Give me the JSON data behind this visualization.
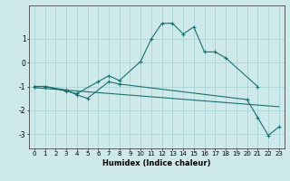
{
  "xlabel": "Humidex (Indice chaleur)",
  "ylabel": "",
  "xlim": [
    -0.5,
    23.5
  ],
  "ylim": [
    -3.6,
    2.4
  ],
  "bg_color": "#cde9e9",
  "grid_color": "#aad4d4",
  "line_color": "#1a7070",
  "xticks": [
    0,
    1,
    2,
    3,
    4,
    5,
    6,
    7,
    8,
    9,
    10,
    11,
    12,
    13,
    14,
    15,
    16,
    17,
    18,
    19,
    20,
    21,
    22,
    23
  ],
  "yticks": [
    -3,
    -2,
    -1,
    0,
    1
  ],
  "line1_x": [
    0,
    1,
    3,
    4,
    6,
    7,
    8,
    10,
    11,
    12,
    13,
    14,
    15,
    16,
    17,
    18,
    21
  ],
  "line1_y": [
    -1.0,
    -1.0,
    -1.2,
    -1.3,
    -0.8,
    -0.55,
    -0.75,
    0.05,
    1.0,
    1.65,
    1.65,
    1.2,
    1.5,
    0.45,
    0.45,
    0.2,
    -1.0
  ],
  "line2_x": [
    0,
    1,
    3,
    4,
    5,
    7,
    8,
    20,
    21,
    22,
    23
  ],
  "line2_y": [
    -1.0,
    -1.0,
    -1.15,
    -1.35,
    -1.5,
    -0.8,
    -0.9,
    -1.55,
    -2.3,
    -3.05,
    -2.7
  ],
  "line3_x": [
    0,
    23
  ],
  "line3_y": [
    -1.05,
    -1.85
  ],
  "xlabel_fontsize": 6.0,
  "tick_fontsize": 5.0
}
